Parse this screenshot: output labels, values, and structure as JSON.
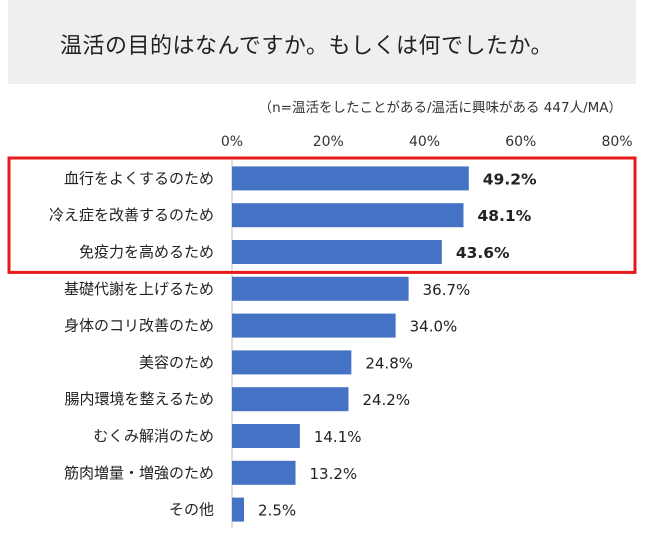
{
  "title": "温活の目的はなんですか。もしくは何でしたか。",
  "subtitle": "（n=温活をしたことがある/温活に興味がある 447人/MA）",
  "colors": {
    "bar": "#4472c4",
    "highlight": "#e8191b",
    "title_bg": "#efefef"
  },
  "chart_data": {
    "type": "bar",
    "orientation": "horizontal",
    "xlim": [
      0,
      80
    ],
    "ticks": [
      "0%",
      "20%",
      "40%",
      "60%",
      "80%"
    ],
    "tick_values": [
      0,
      20,
      40,
      60,
      80
    ],
    "categories": [
      "血行をよくするのため",
      "冷え症を改善するのため",
      "免疫力を高めるため",
      "基礎代謝を上げるため",
      "身体のコリ改善のため",
      "美容のため",
      "腸内環境を整えるため",
      "むくみ解消のため",
      "筋肉増量・増強のため",
      "その他"
    ],
    "values": [
      49.2,
      48.1,
      43.6,
      36.7,
      34.0,
      24.8,
      24.2,
      14.1,
      13.2,
      2.5
    ],
    "value_labels": [
      "49.2%",
      "48.1%",
      "43.6%",
      "36.7%",
      "34.0%",
      "24.8%",
      "24.2%",
      "14.1%",
      "13.2%",
      "2.5%"
    ],
    "highlighted_count": 3,
    "grid": false
  }
}
